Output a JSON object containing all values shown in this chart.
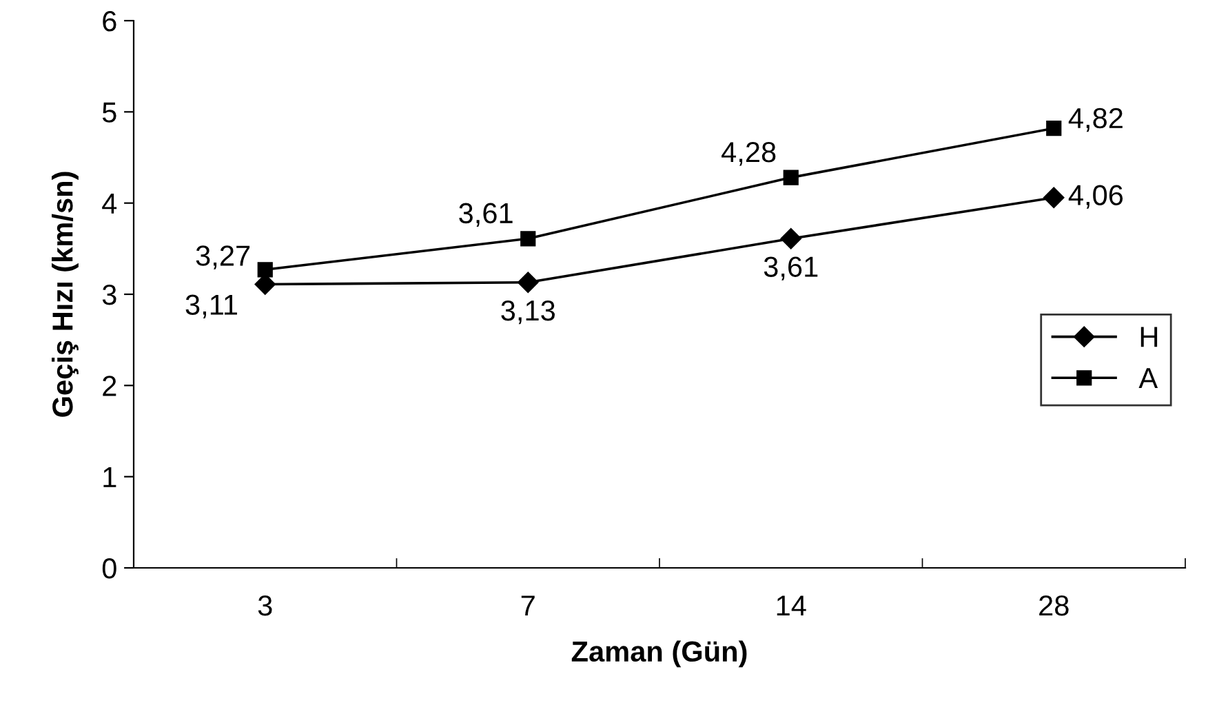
{
  "chart_data": {
    "type": "line",
    "xlabel": "Zaman (Gün)",
    "ylabel": "Geçiş Hızı (km/sn)",
    "categories": [
      "3",
      "7",
      "14",
      "28"
    ],
    "ylim": [
      0,
      6
    ],
    "yticks": [
      0,
      1,
      2,
      3,
      4,
      5,
      6
    ],
    "grid": false,
    "legend": "right",
    "series": [
      {
        "name": "H",
        "color": "#000000",
        "marker": "diamond",
        "values": [
          3.11,
          3.13,
          3.61,
          4.06
        ],
        "value_labels": [
          "3,11",
          "3,13",
          "3,61",
          "4,06"
        ]
      },
      {
        "name": "A",
        "color": "#000000",
        "marker": "square",
        "values": [
          3.27,
          3.61,
          4.28,
          4.82
        ],
        "value_labels": [
          "3,27",
          "3,61",
          "4,28",
          "4,82"
        ]
      }
    ]
  }
}
